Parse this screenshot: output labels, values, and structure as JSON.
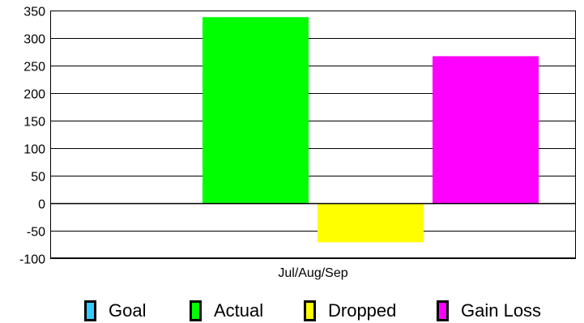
{
  "chart_data": {
    "type": "bar",
    "categories": [
      "Jul/Aug/Sep"
    ],
    "series": [
      {
        "name": "Goal",
        "values": [
          0
        ],
        "color": "#33ccff"
      },
      {
        "name": "Actual",
        "values": [
          338
        ],
        "color": "#00ff00"
      },
      {
        "name": "Dropped",
        "values": [
          -71
        ],
        "color": "#ffff00"
      },
      {
        "name": "Gain Loss",
        "values": [
          267
        ],
        "color": "#ff00ff"
      }
    ],
    "ylim": [
      -100,
      350
    ],
    "yticks": [
      350,
      300,
      250,
      200,
      150,
      100,
      50,
      0,
      -50,
      -100
    ],
    "grid": true,
    "legend_position": "bottom"
  }
}
